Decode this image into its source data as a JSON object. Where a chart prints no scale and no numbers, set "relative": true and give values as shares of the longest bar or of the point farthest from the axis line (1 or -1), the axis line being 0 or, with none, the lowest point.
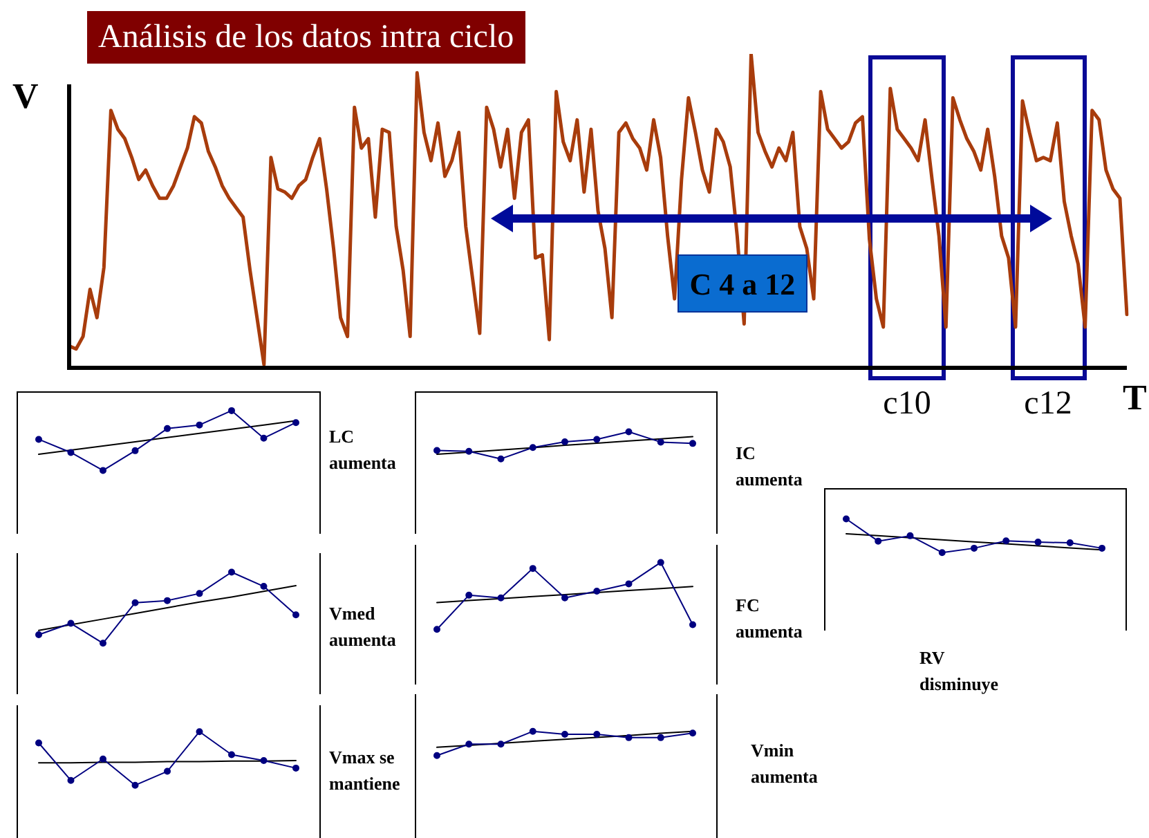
{
  "chart_data": [
    {
      "type": "line",
      "title": "Análisis de los datos intra ciclo",
      "xlabel": "T",
      "ylabel": "V",
      "relative": true,
      "marker": "none",
      "annotations": [
        "C 4 a 12",
        "c10",
        "c12"
      ],
      "categories": [
        null,
        null,
        null,
        null,
        null,
        null,
        null,
        null,
        null,
        null,
        null,
        null,
        null,
        null,
        null,
        null,
        null,
        null,
        null,
        null,
        null,
        null,
        null,
        null,
        null,
        null,
        null,
        null,
        null,
        null,
        null,
        null,
        null,
        null,
        null,
        null,
        null,
        null,
        null,
        null,
        null,
        null,
        null,
        null,
        null,
        null,
        null,
        null,
        null,
        null,
        null,
        null,
        null,
        null,
        null,
        null,
        null,
        null,
        null,
        null,
        null,
        null,
        null,
        null,
        null,
        null,
        null,
        null,
        null,
        null,
        null,
        null,
        null,
        null,
        null,
        null,
        null,
        null,
        null,
        null,
        null,
        null,
        null,
        null,
        null,
        null,
        null,
        null,
        null,
        null,
        null,
        null,
        null,
        null,
        null,
        null,
        null,
        null,
        null,
        null,
        null,
        null,
        null,
        null,
        null,
        null,
        null,
        null,
        null,
        null,
        null,
        null,
        null,
        null,
        null,
        null,
        null,
        null,
        null,
        null,
        null,
        null,
        null,
        null,
        null,
        null,
        null,
        null,
        null,
        null,
        null,
        null,
        null,
        null,
        null,
        null,
        null,
        null,
        null,
        null,
        null,
        null,
        null,
        null,
        null,
        null,
        null,
        null,
        null,
        null,
        null,
        null,
        null
      ],
      "series": [
        {
          "color": "#a83c0c",
          "values": [
            0.07,
            0.06,
            0.1,
            0.25,
            0.16,
            0.32,
            0.82,
            0.76,
            0.73,
            0.67,
            0.6,
            0.63,
            0.58,
            0.54,
            0.54,
            0.58,
            0.64,
            0.7,
            0.8,
            0.78,
            0.69,
            0.64,
            0.58,
            0.54,
            0.51,
            0.48,
            0.31,
            0.16,
            0.01,
            0.67,
            0.57,
            0.56,
            0.54,
            0.58,
            0.6,
            0.67,
            0.73,
            0.57,
            0.38,
            0.16,
            0.1,
            0.83,
            0.7,
            0.73,
            0.48,
            0.76,
            0.75,
            0.45,
            0.31,
            0.1,
            0.94,
            0.75,
            0.66,
            0.78,
            0.61,
            0.66,
            0.75,
            0.45,
            0.28,
            0.11,
            0.83,
            0.76,
            0.64,
            0.76,
            0.54,
            0.75,
            0.79,
            0.35,
            0.36,
            0.09,
            0.88,
            0.72,
            0.66,
            0.79,
            0.56,
            0.76,
            0.5,
            0.38,
            0.16,
            0.75,
            0.78,
            0.73,
            0.7,
            0.63,
            0.79,
            0.67,
            0.42,
            0.22,
            0.6,
            0.86,
            0.75,
            0.63,
            0.56,
            0.76,
            0.72,
            0.64,
            0.42,
            0.14,
            1.0,
            0.75,
            0.69,
            0.64,
            0.7,
            0.66,
            0.75,
            0.45,
            0.38,
            0.22,
            0.88,
            0.76,
            0.73,
            0.7,
            0.72,
            0.78,
            0.8,
            0.41,
            0.22,
            0.13,
            0.89,
            0.76,
            0.73,
            0.7,
            0.66,
            0.79,
            0.6,
            0.42,
            0.13,
            0.86,
            0.79,
            0.73,
            0.69,
            0.63,
            0.76,
            0.61,
            0.42,
            0.35,
            0.13,
            0.85,
            0.75,
            0.66,
            0.67,
            0.66,
            0.78,
            0.53,
            0.42,
            0.33,
            0.13,
            0.82,
            0.79,
            0.63,
            0.57,
            0.54,
            0.17
          ]
        }
      ]
    },
    {
      "type": "line",
      "relative": true,
      "marker": "circle",
      "annotations": [
        "LC aumenta"
      ],
      "categories": [
        null,
        null,
        null,
        null,
        null,
        null,
        null,
        null,
        null
      ],
      "series": [
        {
          "color": "#000080",
          "values": [
            0.52,
            0.3,
            0,
            0.33,
            0.7,
            0.76,
            1,
            0.54,
            0.8
          ]
        },
        {
          "color": "#000000",
          "marker": "none",
          "values": [
            0.27,
            0.34,
            0.41,
            0.48,
            0.55,
            0.62,
            0.69,
            0.76,
            0.83
          ]
        }
      ]
    },
    {
      "type": "line",
      "relative": true,
      "marker": "circle",
      "annotations": [
        "Vmed aumenta"
      ],
      "categories": [
        null,
        null,
        null,
        null,
        null,
        null,
        null,
        null,
        null
      ],
      "series": [
        {
          "color": "#000080",
          "values": [
            0.12,
            0.28,
            0,
            0.57,
            0.6,
            0.7,
            1,
            0.8,
            0.4
          ]
        },
        {
          "color": "#000000",
          "marker": "none",
          "values": [
            0.18,
            0.26,
            0.34,
            0.42,
            0.5,
            0.58,
            0.65,
            0.73,
            0.81
          ]
        }
      ]
    },
    {
      "type": "line",
      "relative": true,
      "marker": "circle",
      "annotations": [
        "Vmax se mantiene"
      ],
      "categories": [
        null,
        null,
        null,
        null,
        null,
        null,
        null,
        null,
        null
      ],
      "series": [
        {
          "color": "#000080",
          "values": [
            0.79,
            0.09,
            0.49,
            0,
            0.26,
            1,
            0.57,
            0.46,
            0.32
          ]
        },
        {
          "color": "#000000",
          "marker": "none",
          "values": [
            0.42,
            0.42,
            0.43,
            0.43,
            0.44,
            0.44,
            0.45,
            0.45,
            0.46
          ]
        }
      ]
    },
    {
      "type": "line",
      "relative": true,
      "marker": "circle",
      "annotations": [
        "IC aumenta"
      ],
      "categories": [
        null,
        null,
        null,
        null,
        null,
        null,
        null,
        null,
        null
      ],
      "series": [
        {
          "color": "#000080",
          "values": [
            0.31,
            0.28,
            0,
            0.42,
            0.63,
            0.72,
            1,
            0.62,
            0.57
          ]
        },
        {
          "color": "#000000",
          "marker": "none",
          "values": [
            0.17,
            0.25,
            0.33,
            0.41,
            0.5,
            0.58,
            0.66,
            0.74,
            0.82
          ]
        }
      ]
    },
    {
      "type": "line",
      "relative": true,
      "marker": "circle",
      "annotations": [
        "FC aumenta"
      ],
      "categories": [
        null,
        null,
        null,
        null,
        null,
        null,
        null,
        null,
        null
      ],
      "series": [
        {
          "color": "#000080",
          "values": [
            0,
            0.51,
            0.47,
            0.91,
            0.47,
            0.57,
            0.68,
            1,
            0.07
          ]
        },
        {
          "color": "#000000",
          "marker": "none",
          "values": [
            0.4,
            0.43,
            0.46,
            0.49,
            0.52,
            0.55,
            0.58,
            0.61,
            0.64
          ]
        }
      ]
    },
    {
      "type": "line",
      "relative": true,
      "marker": "circle",
      "annotations": [
        "Vmin aumenta"
      ],
      "categories": [
        null,
        null,
        null,
        null,
        null,
        null,
        null,
        null,
        null
      ],
      "series": [
        {
          "color": "#000080",
          "values": [
            0,
            0.47,
            0.47,
            1,
            0.88,
            0.88,
            0.74,
            0.74,
            0.93
          ]
        },
        {
          "color": "#000000",
          "marker": "none",
          "values": [
            0.34,
            0.42,
            0.51,
            0.59,
            0.67,
            0.75,
            0.83,
            0.92,
            1.0
          ]
        }
      ]
    },
    {
      "type": "line",
      "relative": true,
      "marker": "circle",
      "annotations": [
        "RV disminuye"
      ],
      "categories": [
        null,
        null,
        null,
        null,
        null,
        null,
        null,
        null,
        null
      ],
      "series": [
        {
          "color": "#000080",
          "values": [
            1,
            0.34,
            0.5,
            0,
            0.13,
            0.35,
            0.31,
            0.29,
            0.13
          ]
        },
        {
          "color": "#000000",
          "marker": "none",
          "values": [
            0.56,
            0.5,
            0.44,
            0.38,
            0.32,
            0.26,
            0.2,
            0.14,
            0.08
          ]
        }
      ]
    }
  ]
}
